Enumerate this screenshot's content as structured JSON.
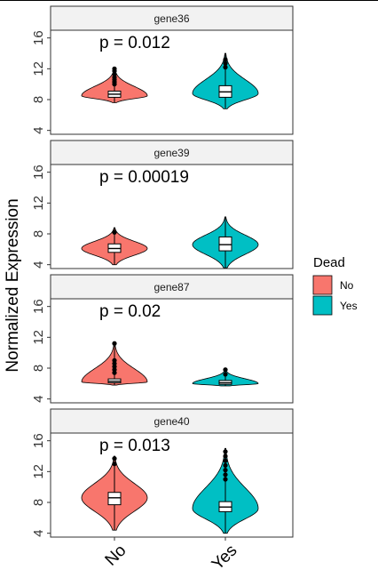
{
  "chart_data": {
    "type": "violin",
    "ylabel": "Normalized Expression",
    "xlabel": "",
    "categories": [
      "No",
      "Yes"
    ],
    "ylim": [
      3.5,
      17
    ],
    "yticks": [
      4,
      8,
      12,
      16
    ],
    "grid": false,
    "legend": {
      "title": "Dead",
      "position": "right",
      "entries": [
        {
          "label": "No",
          "color": "#F8766D"
        },
        {
          "label": "Yes",
          "color": "#00BFC4"
        }
      ]
    },
    "panels": [
      {
        "gene": "gene36",
        "p_label": "p = 0.012",
        "groups": [
          {
            "category": "No",
            "median": 8.7,
            "q1": 8.3,
            "q3": 9.1,
            "violin_min": 7.6,
            "violin_max": 12.0,
            "mode": 8.5,
            "outliers": [
              10.0,
              10.3,
              10.6,
              10.9,
              11.3,
              11.7,
              12.0
            ]
          },
          {
            "category": "Yes",
            "median": 9.0,
            "q1": 8.3,
            "q3": 9.8,
            "violin_min": 6.8,
            "violin_max": 14.0,
            "mode": 8.8,
            "outliers": [
              12.2,
              12.7,
              13.2
            ]
          }
        ]
      },
      {
        "gene": "gene39",
        "p_label": "p = 0.00019",
        "groups": [
          {
            "category": "No",
            "median": 6.1,
            "q1": 5.6,
            "q3": 6.7,
            "violin_min": 4.0,
            "violin_max": 8.8,
            "mode": 6.1,
            "outliers": [
              8.2
            ]
          },
          {
            "category": "Yes",
            "median": 6.6,
            "q1": 5.8,
            "q3": 7.6,
            "violin_min": 3.6,
            "violin_max": 10.2,
            "mode": 6.6,
            "outliers": []
          }
        ]
      },
      {
        "gene": "gene87",
        "p_label": "p = 0.02",
        "groups": [
          {
            "category": "No",
            "median": 6.3,
            "q1": 6.1,
            "q3": 6.6,
            "violin_min": 5.8,
            "violin_max": 11.2,
            "mode": 6.2,
            "outliers": [
              7.4,
              7.8,
              8.2,
              8.6,
              9.0,
              11.2
            ]
          },
          {
            "category": "Yes",
            "median": 6.1,
            "q1": 5.9,
            "q3": 6.4,
            "violin_min": 5.7,
            "violin_max": 7.8,
            "mode": 6.0,
            "outliers": [
              7.2,
              7.8
            ]
          }
        ]
      },
      {
        "gene": "gene40",
        "p_label": "p = 0.013",
        "groups": [
          {
            "category": "No",
            "median": 8.6,
            "q1": 7.7,
            "q3": 9.3,
            "violin_min": 4.4,
            "violin_max": 14.0,
            "mode": 8.6,
            "outliers": [
              13.0,
              13.7
            ]
          },
          {
            "category": "Yes",
            "median": 7.4,
            "q1": 6.8,
            "q3": 8.1,
            "violin_min": 4.0,
            "violin_max": 15.0,
            "mode": 7.2,
            "outliers": [
              11.0,
              11.6,
              12.2,
              12.8,
              13.4,
              14.0,
              14.6
            ]
          }
        ]
      }
    ]
  }
}
